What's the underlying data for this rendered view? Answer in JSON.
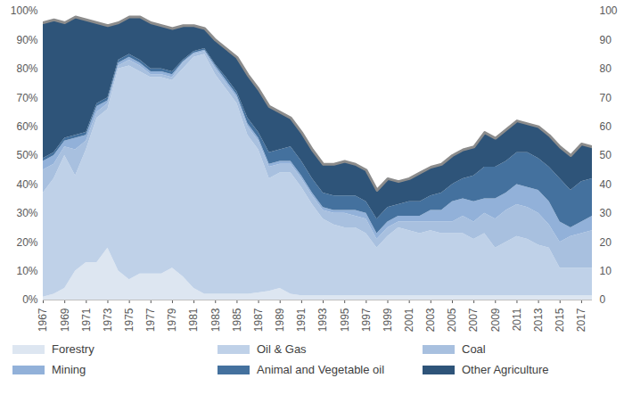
{
  "chart_data": {
    "type": "area",
    "stacked": true,
    "grid": false,
    "legend": "bottom",
    "x": [
      1967,
      1968,
      1969,
      1970,
      1971,
      1972,
      1973,
      1974,
      1975,
      1976,
      1977,
      1978,
      1979,
      1980,
      1981,
      1982,
      1983,
      1984,
      1985,
      1986,
      1987,
      1988,
      1989,
      1990,
      1991,
      1992,
      1993,
      1994,
      1995,
      1996,
      1997,
      1998,
      1999,
      2000,
      2001,
      2002,
      2003,
      2004,
      2005,
      2006,
      2007,
      2008,
      2009,
      2010,
      2011,
      2012,
      2013,
      2014,
      2015,
      2016,
      2017,
      2018
    ],
    "xlim": [
      1967,
      2018
    ],
    "xticks": [
      1967,
      1969,
      1971,
      1973,
      1975,
      1977,
      1979,
      1981,
      1983,
      1985,
      1987,
      1989,
      1991,
      1993,
      1995,
      1997,
      1999,
      2001,
      2003,
      2005,
      2007,
      2009,
      2011,
      2013,
      2015,
      2017
    ],
    "ylim": [
      0,
      100
    ],
    "yticks": [
      {
        "value": 0,
        "label": "0%"
      },
      {
        "value": 10,
        "label": "10%"
      },
      {
        "value": 20,
        "label": "20%"
      },
      {
        "value": 30,
        "label": "30%"
      },
      {
        "value": 40,
        "label": "40%"
      },
      {
        "value": 50,
        "label": "50%"
      },
      {
        "value": 60,
        "label": "60%"
      },
      {
        "value": 70,
        "label": "70%"
      },
      {
        "value": 80,
        "label": "80%"
      },
      {
        "value": 90,
        "label": "90%"
      },
      {
        "value": 100,
        "label": "100%"
      }
    ],
    "y2lim": [
      0,
      100
    ],
    "y2ticks": [
      0,
      10,
      20,
      30,
      40,
      50,
      60,
      70,
      80,
      90,
      100
    ],
    "series": [
      {
        "name": "Forestry",
        "color": "#dde6f1",
        "values": [
          1,
          2,
          4,
          10,
          13,
          13,
          18,
          10,
          7,
          9,
          9,
          9,
          11,
          8,
          4,
          2,
          2,
          2,
          2,
          2,
          2.5,
          3,
          4,
          2,
          1.5,
          1.5,
          1.5,
          1.5,
          1.5,
          1.5,
          1.5,
          1.5,
          1.5,
          1.5,
          1.5,
          1.5,
          1.5,
          1.5,
          1.5,
          1.5,
          1.5,
          1.5,
          1.5,
          1.5,
          1.5,
          1.5,
          1.5,
          1.5,
          1.5,
          1.5,
          1.5,
          1.5
        ]
      },
      {
        "name": "Oil & Gas",
        "color": "#bfd1e8",
        "values": [
          36,
          40,
          46,
          33,
          39,
          50,
          48,
          70,
          74,
          70,
          68,
          68,
          65,
          72,
          80,
          83,
          76,
          71,
          66,
          55,
          49.5,
          39,
          40,
          42,
          37.5,
          31.5,
          26.5,
          24.5,
          23.5,
          23.5,
          21.5,
          16.5,
          20.5,
          23.5,
          22.5,
          21.5,
          22.5,
          21.5,
          21.5,
          21.5,
          19.5,
          21.5,
          16.5,
          18.5,
          20.5,
          19.5,
          17.5,
          16.5,
          9.5,
          9.5,
          9.5,
          9.5
        ]
      },
      {
        "name": "Coal",
        "color": "#a8c0df",
        "values": [
          8,
          5,
          3,
          9,
          3,
          2,
          2,
          1,
          2,
          2,
          1,
          1,
          1,
          2,
          1,
          1,
          2,
          2,
          2,
          3,
          3,
          4,
          3,
          3,
          3,
          3,
          3,
          4,
          5,
          4,
          5,
          3,
          3,
          2,
          3,
          4,
          3,
          4,
          4,
          6,
          6,
          7,
          10,
          11,
          11,
          11,
          11,
          8,
          9,
          11,
          12,
          13
        ]
      },
      {
        "name": "Mining",
        "color": "#92b1d9",
        "values": [
          3,
          3,
          2,
          4,
          2,
          2,
          1,
          1,
          1,
          1,
          1,
          1,
          1,
          0.5,
          0.5,
          0.5,
          1,
          1,
          1,
          1,
          1,
          1,
          1,
          1,
          1,
          1,
          1,
          1,
          1,
          2,
          2,
          2,
          2,
          2,
          2,
          2,
          4,
          4,
          7,
          6,
          7,
          5,
          7,
          6,
          7,
          7,
          8,
          8,
          7,
          3,
          4,
          5
        ]
      },
      {
        "name": "Animal and Vegetable oil",
        "color": "#44719e",
        "values": [
          1,
          1,
          1,
          1,
          1,
          1,
          1,
          1,
          1,
          1,
          1,
          1,
          1,
          0.5,
          0.5,
          0.5,
          0.5,
          1,
          1,
          2,
          2,
          4,
          4,
          5,
          5,
          5,
          5,
          5,
          5,
          5,
          4,
          5,
          5,
          4,
          5,
          5,
          5,
          6,
          6,
          7,
          9,
          11,
          11,
          11,
          11,
          12,
          11,
          12,
          15,
          13,
          14,
          13
        ]
      },
      {
        "name": "Other Agriculture",
        "color": "#2e5479",
        "values": [
          47,
          46,
          40,
          41,
          39,
          28,
          25,
          13,
          13,
          15,
          16,
          15,
          15,
          12,
          9,
          7,
          8.5,
          10,
          12,
          15,
          15,
          16,
          13,
          10,
          10,
          10,
          10,
          11,
          12,
          11,
          11,
          10,
          10,
          8,
          8,
          10,
          10,
          10,
          10,
          10,
          10,
          12,
          10,
          11,
          11,
          10,
          11,
          11,
          11,
          12,
          13,
          11
        ]
      }
    ]
  }
}
